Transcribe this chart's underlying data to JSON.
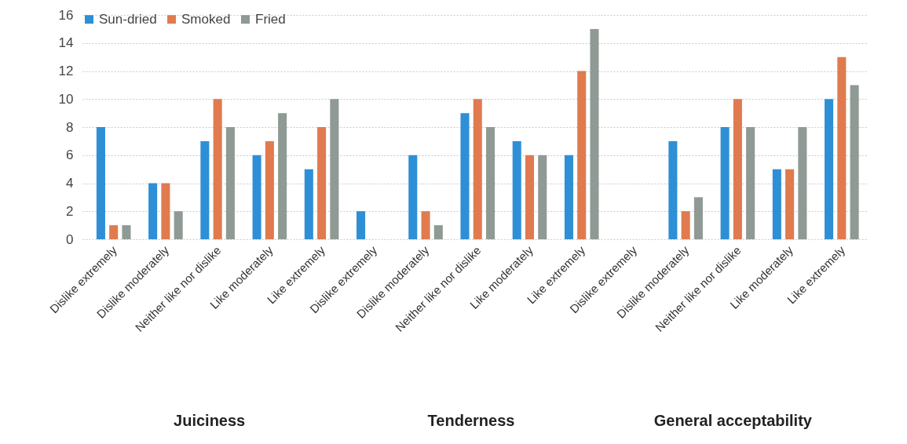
{
  "chart_data": {
    "type": "bar",
    "categories": [
      "Dislike extremely",
      "Dislike moderately",
      "Neither like nor dislike",
      "Like moderately",
      "Like extremely",
      "Dislike extremely",
      "Dislike moderately",
      "Neither like nor dislike",
      "Like moderately",
      "Like extremely",
      "Dislike extremely",
      "Dislike moderately",
      "Neither like nor dislike",
      "Like moderately",
      "Like extremely"
    ],
    "series": [
      {
        "name": "Sun-dried",
        "color": "#2e8fd6",
        "values": [
          8,
          4,
          7,
          6,
          5,
          2,
          6,
          9,
          7,
          6,
          0,
          7,
          8,
          5,
          10
        ]
      },
      {
        "name": "Smoked",
        "color": "#e07b4f",
        "values": [
          1,
          4,
          10,
          7,
          8,
          0,
          2,
          10,
          6,
          12,
          0,
          2,
          10,
          5,
          13
        ]
      },
      {
        "name": "Fried",
        "color": "#8f9a94",
        "values": [
          1,
          2,
          8,
          9,
          10,
          0,
          1,
          8,
          6,
          15,
          0,
          3,
          8,
          8,
          11
        ]
      }
    ],
    "annotations": [
      "Juiciness",
      "Tenderness",
      "General acceptability"
    ],
    "ylim": [
      0,
      16
    ],
    "yticks": [
      0,
      2,
      4,
      6,
      8,
      10,
      12,
      14,
      16
    ],
    "grid": "y",
    "legend": "top"
  }
}
